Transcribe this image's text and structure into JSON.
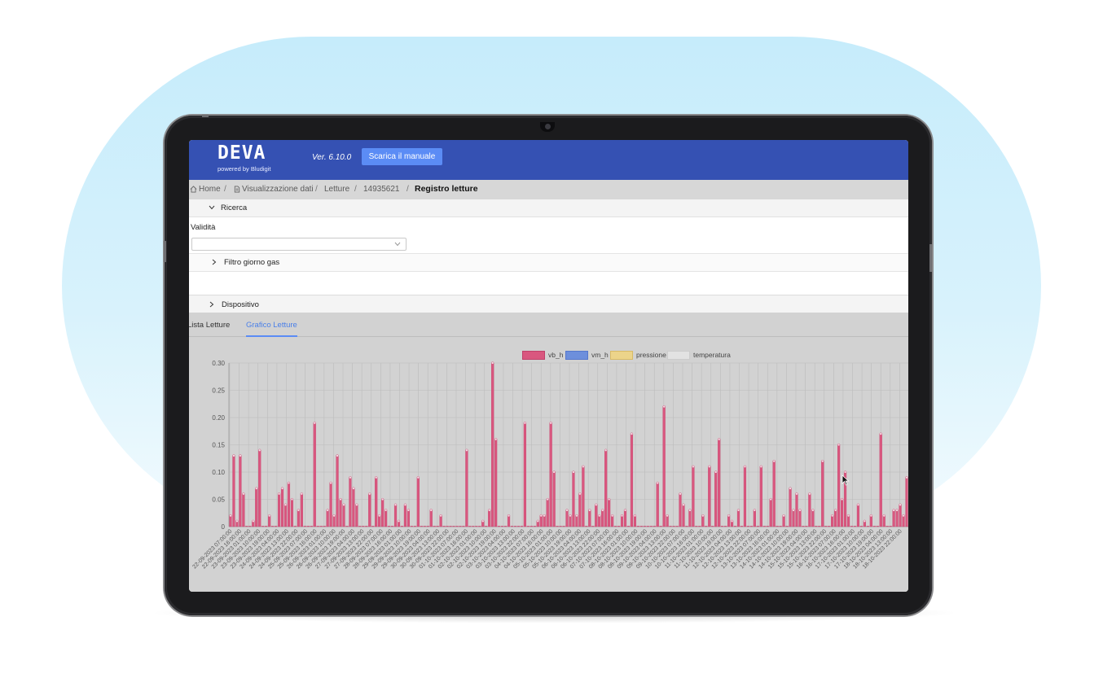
{
  "header": {
    "brand": "DEVA",
    "brand_sub": "powered by Bludigit",
    "version": "Ver. 6.10.0",
    "manual_button": "Scarica il manuale",
    "bar_color": "#3551b3"
  },
  "breadcrumb": {
    "items": [
      "Home",
      "Visualizzazione dati",
      "Letture",
      "14935621"
    ],
    "current": "Registro letture",
    "separator": "/"
  },
  "search": {
    "title": "Ricerca",
    "validity_label": "Validità",
    "validity_value": "",
    "gas_day_filter": "Filtro giorno gas",
    "device": "Dispositivo"
  },
  "tabs": {
    "list": "Lista Letture",
    "chart": "Grafico Letture",
    "active": "Grafico Letture"
  },
  "icons": [
    "home-icon",
    "document-icon",
    "chevron-down-icon",
    "chevron-right-icon",
    "mouse-pointer-icon"
  ],
  "chart_data": {
    "type": "bar",
    "series": [
      {
        "name": "vb_h",
        "color": "#d9577f",
        "values": [
          0.02,
          0.13,
          0.01,
          0.13,
          0.06,
          0.0,
          0.0,
          0.01,
          0.07,
          0.14,
          0.0,
          0.0,
          0.02,
          0.0,
          0.0,
          0.06,
          0.07,
          0.04,
          0.08,
          0.05,
          0.0,
          0.03,
          0.06,
          0.0,
          0.0,
          0.0,
          0.19,
          0.0,
          0.0,
          0.0,
          0.03,
          0.08,
          0.02,
          0.13,
          0.05,
          0.04,
          0.0,
          0.09,
          0.07,
          0.04,
          0.0,
          0.0,
          0.0,
          0.06,
          0.0,
          0.09,
          0.02,
          0.05,
          0.03,
          0.0,
          0.0,
          0.04,
          0.01,
          0.0,
          0.04,
          0.03,
          0.0,
          0.0,
          0.09,
          0.0,
          0.0,
          0.0,
          0.03,
          0.0,
          0.0,
          0.02,
          0.0,
          0.0,
          0.0,
          0.0,
          0.0,
          0.0,
          0.0,
          0.14,
          0.0,
          0.0,
          0.0,
          0.0,
          0.01,
          0.0,
          0.03,
          0.3,
          0.16,
          0.0,
          0.0,
          0.0,
          0.02,
          0.0,
          0.0,
          0.0,
          0.0,
          0.19,
          0.0,
          0.0,
          0.0,
          0.01,
          0.02,
          0.02,
          0.05,
          0.19,
          0.1,
          0.0,
          0.0,
          0.0,
          0.03,
          0.02,
          0.1,
          0.02,
          0.06,
          0.11,
          0.0,
          0.03,
          0.0,
          0.04,
          0.02,
          0.03,
          0.14,
          0.05,
          0.02,
          0.0,
          0.0,
          0.02,
          0.03,
          0.0,
          0.17,
          0.02,
          0.0,
          0.0,
          0.0,
          0.0,
          0.0,
          0.0,
          0.08,
          0.0,
          0.22,
          0.02,
          0.0,
          0.0,
          0.0,
          0.06,
          0.04,
          0.0,
          0.03,
          0.11,
          0.0,
          0.0,
          0.02,
          0.0,
          0.11,
          0.0,
          0.1,
          0.16,
          0.0,
          0.0,
          0.02,
          0.01,
          0.0,
          0.03,
          0.0,
          0.11,
          0.0,
          0.0,
          0.03,
          0.0,
          0.11,
          0.0,
          0.0,
          0.05,
          0.12,
          0.0,
          0.0,
          0.02,
          0.0,
          0.07,
          0.03,
          0.06,
          0.03,
          0.0,
          0.0,
          0.06,
          0.03,
          0.0,
          0.0,
          0.12,
          0.0,
          0.0,
          0.02,
          0.03,
          0.15,
          0.05,
          0.1,
          0.02,
          0.0,
          0.0,
          0.04,
          0.0,
          0.01,
          0.0,
          0.02,
          0.0,
          0.0,
          0.17,
          0.02,
          0.0,
          0.0,
          0.03,
          0.03,
          0.04,
          0.02,
          0.09
        ]
      },
      {
        "name": "vm_h",
        "color": "#6d8fdc",
        "values": []
      },
      {
        "name": "pressione",
        "color": "#ecd48a",
        "values": []
      },
      {
        "name": "temperatura",
        "color": "#e2e2e2",
        "values": []
      }
    ],
    "y_ticks": [
      "0",
      "0.05",
      "0.10",
      "0.15",
      "0.20",
      "0.25",
      "0.30"
    ],
    "ylim": [
      0,
      0.3
    ],
    "x_tick_labels": [
      "22-09-2023 07:00:00",
      "22-09-2023 16:00:00",
      "23-09-2023 01:00:00",
      "23-09-2023 10:00:00",
      "23-09-2023 19:00:00",
      "24-09-2023 04:00:00",
      "24-09-2023 13:00:00",
      "24-09-2023 22:00:00",
      "25-09-2023 07:00:00",
      "25-09-2023 16:00:00",
      "26-09-2023 01:00:00",
      "26-09-2023 10:00:00",
      "26-09-2023 19:00:00",
      "27-09-2023 04:00:00",
      "27-09-2023 13:00:00",
      "27-09-2023 22:00:00",
      "28-09-2023 07:00:00",
      "28-09-2023 16:00:00",
      "29-09-2023 01:00:00",
      "29-09-2023 10:00:00",
      "29-09-2023 19:00:00",
      "30-09-2023 04:00:00",
      "30-09-2023 13:00:00",
      "30-09-2023 22:00:00",
      "01-10-2023 07:00:00",
      "01-10-2023 16:00:00",
      "02-10-2023 01:00:00",
      "02-10-2023 10:00:00",
      "02-10-2023 19:00:00",
      "03-10-2023 04:00:00",
      "03-10-2023 13:00:00",
      "03-10-2023 22:00:00",
      "04-10-2023 07:00:00",
      "04-10-2023 16:00:00",
      "05-10-2023 01:00:00",
      "05-10-2023 10:00:00",
      "05-10-2023 19:00:00",
      "06-10-2023 04:00:00",
      "06-10-2023 13:00:00",
      "06-10-2023 22:00:00",
      "07-10-2023 07:00:00",
      "07-10-2023 16:00:00",
      "08-10-2023 01:00:00",
      "08-10-2023 10:00:00",
      "08-10-2023 19:00:00",
      "09-10-2023 04:00:00",
      "09-10-2023 13:00:00",
      "09-10-2023 22:00:00",
      "10-10-2023 07:00:00",
      "10-10-2023 16:00:00",
      "11-10-2023 01:00:00",
      "11-10-2023 10:00:00",
      "11-10-2023 19:00:00",
      "12-10-2023 04:00:00",
      "12-10-2023 13:00:00",
      "12-10-2023 22:00:00",
      "13-10-2023 07:00:00",
      "13-10-2023 16:00:00",
      "14-10-2023 01:00:00",
      "14-10-2023 10:00:00",
      "14-10-2023 19:00:00",
      "15-10-2023 04:00:00",
      "15-10-2023 13:00:00",
      "15-10-2023 22:00:00",
      "16-10-2023 07:00:00",
      "16-10-2023 16:00:00",
      "17-10-2023 01:00:00",
      "17-10-2023 10:00:00",
      "17-10-2023 19:00:00",
      "18-10-2023 04:00:00",
      "18-10-2023 13:00:00",
      "18-10-2023 22:00:00"
    ],
    "grid": true,
    "legend_position": "top-center"
  }
}
